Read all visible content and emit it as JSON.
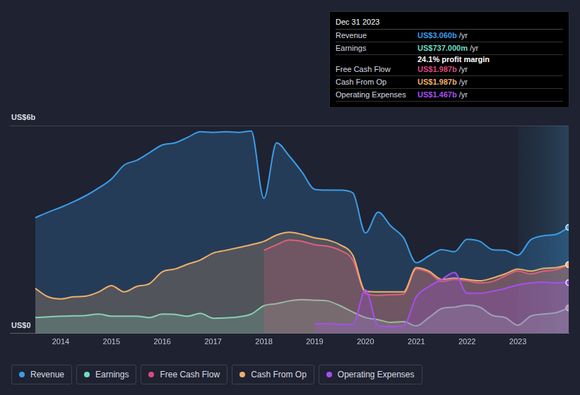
{
  "chart_data": {
    "type": "line",
    "x": [
      2013.5,
      2013.75,
      2014,
      2014.25,
      2014.5,
      2014.75,
      2015,
      2015.25,
      2015.5,
      2015.75,
      2016,
      2016.25,
      2016.5,
      2016.75,
      2017,
      2017.25,
      2017.5,
      2017.75,
      2018,
      2018.25,
      2018.5,
      2018.75,
      2019,
      2019.25,
      2019.5,
      2019.75,
      2020,
      2020.25,
      2020.5,
      2020.75,
      2021,
      2021.25,
      2021.5,
      2021.75,
      2022,
      2022.25,
      2022.5,
      2022.75,
      2023,
      2023.25,
      2023.5,
      2023.75,
      2024
    ],
    "series": [
      {
        "name": "Revenue",
        "color": "#3b9ce8",
        "values": [
          3.34,
          3.5,
          3.64,
          3.8,
          3.98,
          4.2,
          4.46,
          4.86,
          5.0,
          5.22,
          5.44,
          5.5,
          5.66,
          5.82,
          5.8,
          5.82,
          5.8,
          5.84,
          3.9,
          5.5,
          5.12,
          4.66,
          4.16,
          4.14,
          4.14,
          4.06,
          2.9,
          3.5,
          3.1,
          2.76,
          2.04,
          2.24,
          2.42,
          2.36,
          2.72,
          2.66,
          2.42,
          2.4,
          2.26,
          2.7,
          2.82,
          2.86,
          3.06
        ]
      },
      {
        "name": "Earnings",
        "color": "#6cdcc5",
        "values": [
          0.46,
          0.48,
          0.5,
          0.51,
          0.52,
          0.56,
          0.5,
          0.5,
          0.5,
          0.46,
          0.56,
          0.55,
          0.5,
          0.58,
          0.44,
          0.45,
          0.48,
          0.56,
          0.8,
          0.86,
          0.94,
          0.98,
          0.96,
          0.94,
          0.8,
          0.62,
          0.46,
          0.4,
          0.32,
          0.34,
          0.22,
          0.46,
          0.72,
          0.76,
          0.82,
          0.76,
          0.52,
          0.46,
          0.24,
          0.5,
          0.56,
          0.6,
          0.737
        ]
      },
      {
        "name": "Free Cash Flow",
        "color": "#d9497f",
        "values": [
          null,
          null,
          null,
          null,
          null,
          null,
          null,
          null,
          null,
          null,
          null,
          null,
          null,
          null,
          null,
          null,
          null,
          null,
          2.4,
          2.56,
          2.7,
          2.66,
          2.56,
          2.52,
          2.4,
          2.12,
          1.16,
          1.1,
          1.12,
          1.14,
          1.86,
          1.76,
          1.5,
          1.56,
          1.52,
          1.46,
          1.5,
          1.66,
          1.8,
          1.72,
          1.8,
          1.84,
          1.987
        ]
      },
      {
        "name": "Cash From Op",
        "color": "#efaf6a",
        "values": [
          1.3,
          1.06,
          1.0,
          1.06,
          1.08,
          1.2,
          1.38,
          1.2,
          1.36,
          1.44,
          1.78,
          1.86,
          2.0,
          2.12,
          2.32,
          2.4,
          2.48,
          2.56,
          2.66,
          2.84,
          2.92,
          2.86,
          2.76,
          2.7,
          2.56,
          2.26,
          1.22,
          1.2,
          1.2,
          1.2,
          1.9,
          1.8,
          1.56,
          1.6,
          1.56,
          1.52,
          1.6,
          1.72,
          1.86,
          1.8,
          1.88,
          1.9,
          1.987
        ]
      },
      {
        "name": "Operating Expenses",
        "color": "#a64ff0",
        "values": [
          null,
          null,
          null,
          null,
          null,
          null,
          null,
          null,
          null,
          null,
          null,
          null,
          null,
          null,
          null,
          null,
          null,
          null,
          null,
          null,
          null,
          null,
          0.28,
          0.28,
          0.26,
          0.26,
          1.26,
          0.22,
          0.2,
          0.22,
          1.06,
          1.36,
          1.56,
          1.76,
          1.16,
          1.16,
          1.22,
          1.3,
          1.4,
          1.46,
          1.48,
          1.46,
          1.467
        ]
      }
    ],
    "xlim": [
      2013,
      2024
    ],
    "xticks": [
      2014,
      2015,
      2016,
      2017,
      2018,
      2019,
      2020,
      2021,
      2022,
      2023
    ],
    "ylim": [
      0,
      6
    ],
    "yticks": [
      {
        "value": 0,
        "label": "US$0"
      },
      {
        "value": 6,
        "label": "US$6b"
      }
    ],
    "grid": true,
    "legend": "bottom",
    "annotations": {
      "title": "Dec 31 2023",
      "rows": [
        {
          "label": "Revenue",
          "value": "US$3.060b",
          "unit": "/yr"
        },
        {
          "label": "Earnings",
          "value": "US$737.000m",
          "unit": "/yr"
        },
        {
          "note": "24.1% profit margin"
        },
        {
          "label": "Free Cash Flow",
          "value": "US$1.987b",
          "unit": "/yr"
        },
        {
          "label": "Cash From Op",
          "value": "US$1.987b",
          "unit": "/yr"
        },
        {
          "label": "Operating Expenses",
          "value": "US$1.467b",
          "unit": "/yr"
        }
      ]
    }
  }
}
